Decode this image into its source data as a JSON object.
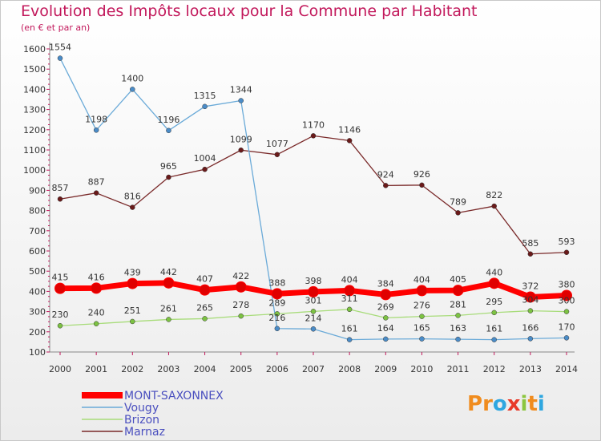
{
  "title": "Evolution des Impôts locaux pour la Commune par Habitant",
  "subtitle": "(en € et par an)",
  "logo": {
    "letters": [
      "P",
      "r",
      "o",
      "x",
      "i",
      "t",
      "i"
    ],
    "colors": [
      "#f08c1e",
      "#f08c1e",
      "#2fa7e0",
      "#e83a2a",
      "#8cc63f",
      "#f08c1e",
      "#2fa7e0"
    ]
  },
  "chart_data": {
    "type": "line",
    "x": [
      "2000",
      "2001",
      "2002",
      "2003",
      "2004",
      "2005",
      "2006",
      "2007",
      "2008",
      "2009",
      "2010",
      "2011",
      "2012",
      "2013",
      "2014"
    ],
    "ylim": [
      100,
      1600
    ],
    "yticks": [
      100,
      200,
      300,
      400,
      500,
      600,
      700,
      800,
      900,
      1000,
      1100,
      1200,
      1300,
      1400,
      1500,
      1600
    ],
    "grid": false,
    "legend": "bottom-left",
    "series": [
      {
        "name": "MONT-SAXONNEX",
        "color": "#ff0000",
        "marker": "#e00000",
        "values": [
          415,
          416,
          439,
          442,
          407,
          422,
          388,
          398,
          404,
          384,
          404,
          405,
          440,
          372,
          380
        ]
      },
      {
        "name": "Vougy",
        "color": "#6aaad8",
        "marker": "#4a8cc8",
        "values": [
          1554,
          1198,
          1400,
          1196,
          1315,
          1344,
          216,
          214,
          161,
          164,
          165,
          163,
          161,
          166,
          170
        ]
      },
      {
        "name": "Brizon",
        "color": "#a8dc7a",
        "marker": "#7cc242",
        "values": [
          230,
          240,
          251,
          261,
          265,
          278,
          289,
          301,
          311,
          269,
          276,
          281,
          295,
          304,
          300
        ]
      },
      {
        "name": "Marnaz",
        "color": "#7a2a2a",
        "marker": "#6a1a1a",
        "values": [
          857,
          887,
          816,
          965,
          1004,
          1099,
          1077,
          1170,
          1146,
          924,
          926,
          789,
          822,
          585,
          593
        ]
      }
    ]
  }
}
